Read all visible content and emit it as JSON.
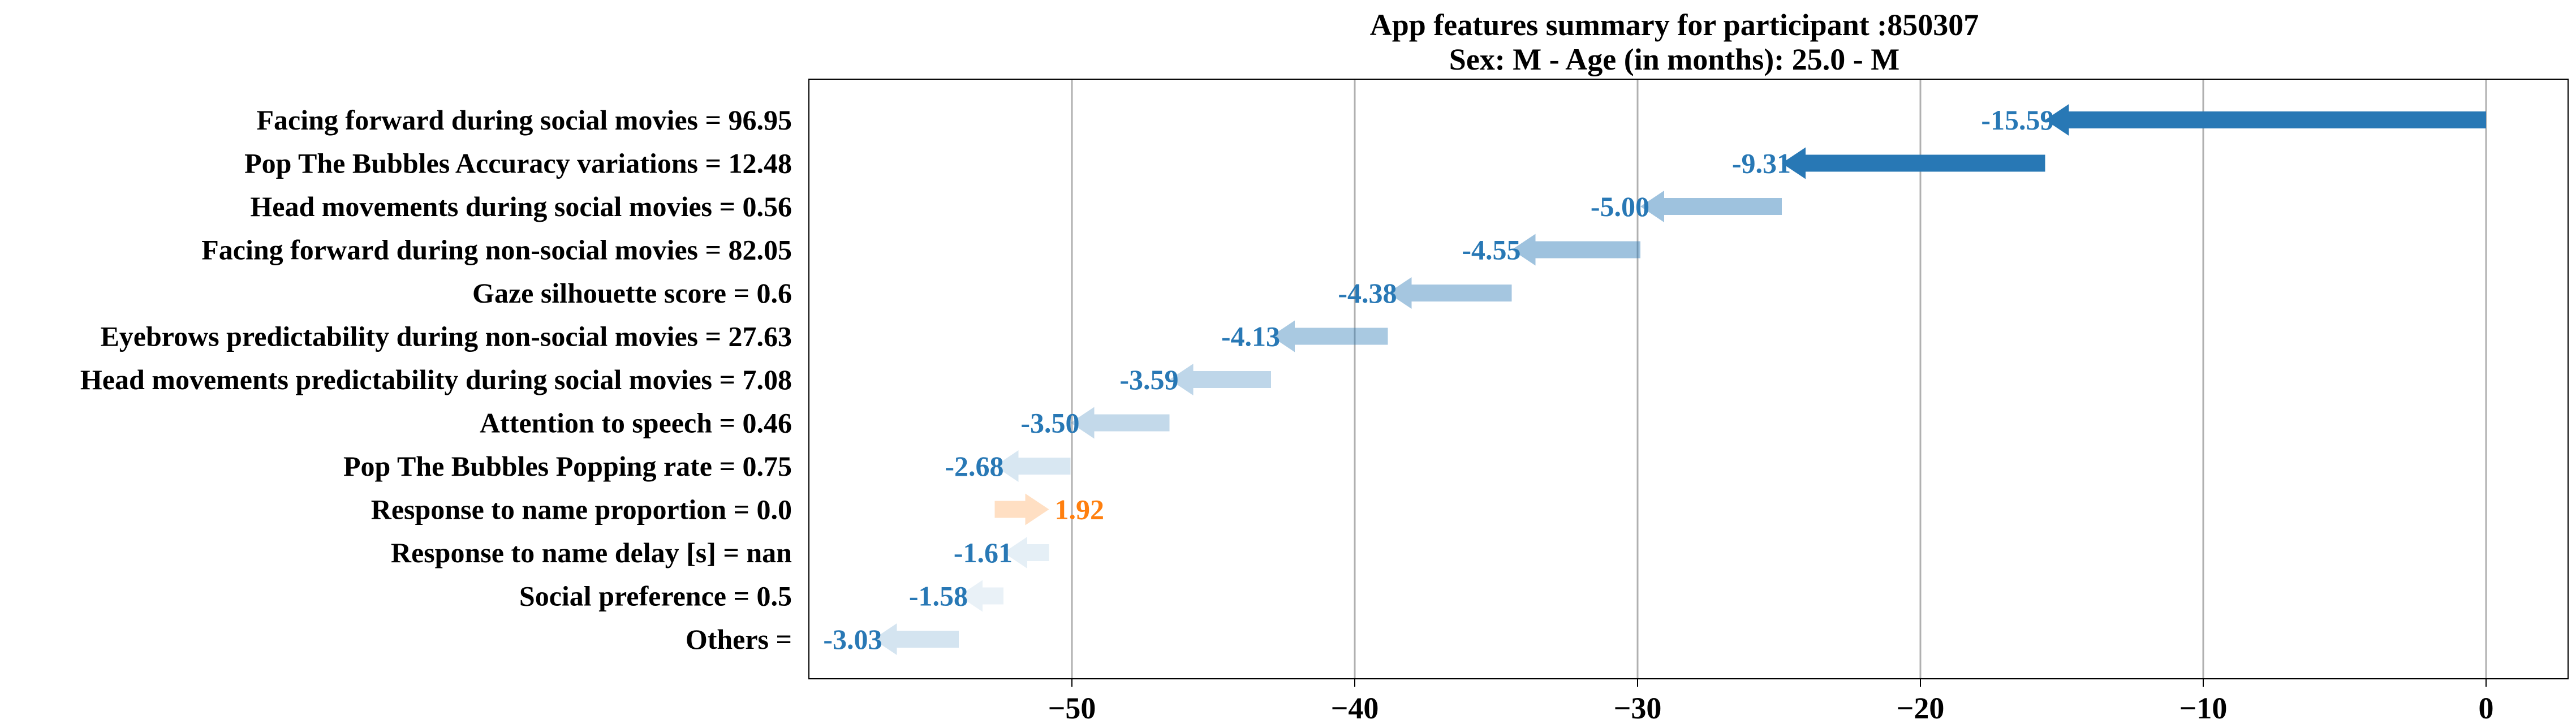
{
  "chart_data": {
    "type": "waterfall",
    "title_lines": [
      "App features summary for participant :850307",
      "Sex: M - Age (in months): 25.0 - M"
    ],
    "xlim": [
      -59.3,
      2.9
    ],
    "xticks": [
      -50,
      -40,
      -30,
      -20,
      -10,
      0
    ],
    "xtick_labels": [
      "−50",
      "−40",
      "−30",
      "−20",
      "−10",
      "0"
    ],
    "grid": "vertical",
    "colors": {
      "negative": "#2878b5",
      "positive": "#ff7f0e"
    },
    "bars": [
      {
        "label": "Facing forward during social movies = 96.95",
        "start": 0.0,
        "end": -15.59,
        "value_label": "-15.59",
        "opacity": 1.0
      },
      {
        "label": "Pop The Bubbles Accuracy variations = 12.48",
        "start": -15.59,
        "end": -24.9,
        "value_label": "-9.31",
        "opacity": 1.0
      },
      {
        "label": "Head movements during social movies = 0.56",
        "start": -24.9,
        "end": -29.9,
        "value_label": "-5.00",
        "opacity": 0.45
      },
      {
        "label": "Facing forward during non-social movies = 82.05",
        "start": -29.9,
        "end": -34.45,
        "value_label": "-4.55",
        "opacity": 0.45
      },
      {
        "label": "Gaze silhouette score = 0.6",
        "start": -34.45,
        "end": -38.83,
        "value_label": "-4.38",
        "opacity": 0.42
      },
      {
        "label": "Eyebrows predictability during non-social movies = 27.63",
        "start": -38.83,
        "end": -42.96,
        "value_label": "-4.13",
        "opacity": 0.4
      },
      {
        "label": "Head movements predictability during social movies = 7.08",
        "start": -42.96,
        "end": -46.55,
        "value_label": "-3.59",
        "opacity": 0.3
      },
      {
        "label": "Attention to speech = 0.46",
        "start": -46.55,
        "end": -50.05,
        "value_label": "-3.50",
        "opacity": 0.28
      },
      {
        "label": "Pop The Bubbles Popping rate = 0.75",
        "start": -50.05,
        "end": -52.73,
        "value_label": "-2.68",
        "opacity": 0.18
      },
      {
        "label": "Response to name proportion = 0.0",
        "start": -52.73,
        "end": -50.81,
        "value_label": "1.92",
        "opacity": 0.25
      },
      {
        "label": "Response to name delay [s] = nan",
        "start": -50.81,
        "end": -52.42,
        "value_label": "-1.61",
        "opacity": 0.12
      },
      {
        "label": "Social preference = 0.5",
        "start": -52.42,
        "end": -54.0,
        "value_label": "-1.58",
        "opacity": 0.1
      },
      {
        "label": "Others = ",
        "start": -54.0,
        "end": -57.03,
        "value_label": "-3.03",
        "opacity": 0.2
      }
    ]
  }
}
